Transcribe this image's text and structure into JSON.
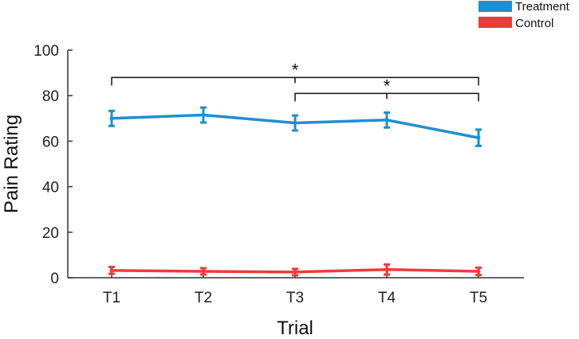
{
  "chart_data": {
    "type": "line",
    "xlabel": "Trial",
    "ylabel": "Pain Rating",
    "categories": [
      "T1",
      "T2",
      "T3",
      "T4",
      "T5"
    ],
    "ylim": [
      0,
      100
    ],
    "yticks": [
      "0",
      "20",
      "40",
      "60",
      "80",
      "100"
    ],
    "grid": false,
    "legend_position": "top-right",
    "series": [
      {
        "name": "Treatment",
        "color": "#1f8fd0",
        "values": [
          70,
          71.5,
          68,
          69.3,
          61.5
        ],
        "errors": [
          3.3,
          3.3,
          3.3,
          3.3,
          3.6
        ]
      },
      {
        "name": "Control",
        "color": "#ef3a3a",
        "values": [
          3.2,
          2.8,
          2.5,
          3.6,
          2.8
        ],
        "errors": [
          1.5,
          1.4,
          1.4,
          2.2,
          1.6
        ]
      }
    ],
    "significance": [
      {
        "from": "T1",
        "to": "T5",
        "label": "*",
        "level": 88
      },
      {
        "from": "T3",
        "to": "T5",
        "label": "*",
        "level": 81
      }
    ]
  }
}
